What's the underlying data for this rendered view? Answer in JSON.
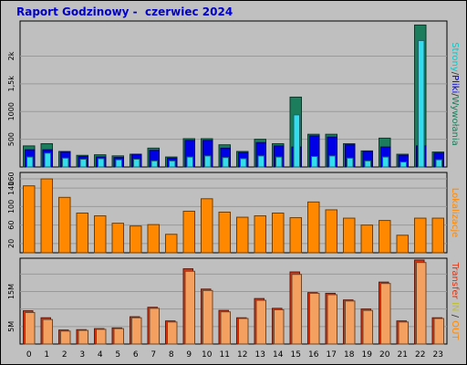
{
  "title": "Raport Godzinowy -  czerwiec 2024",
  "colors": {
    "background": "#c0c0c0",
    "plot_bg": "#bfbfbf",
    "title": "#0000cc",
    "wizyty": "#1c7d5c",
    "strony": "#0000e6",
    "pliki": "#33ddee",
    "lokalizacje": "#ff8800",
    "transfer_in": "#dd3311",
    "transfer_out": "#f4a060",
    "label_transfer": "#dd3311",
    "label_in": "#bfbf33",
    "label_out": "#ff8800"
  },
  "labels": {
    "right_top": [
      {
        "text": "Strony",
        "color": "#00cccc"
      },
      {
        "text": "/",
        "color": "#333333"
      },
      {
        "text": "Pliki",
        "color": "#0000cc"
      },
      {
        "text": "/",
        "color": "#333333"
      },
      {
        "text": "Wywołania",
        "color": "#1c7d5c"
      }
    ],
    "right_mid": "Lokalizacje",
    "right_bottom": [
      {
        "text": "Transfer",
        "color": "#dd3311"
      },
      {
        "text": " IN ",
        "color": "#bfbf33"
      },
      {
        "text": "/ ",
        "color": "#333333"
      },
      {
        "text": "OUT",
        "color": "#ff8800"
      }
    ]
  },
  "chart_data": [
    {
      "type": "bar",
      "panel": "hits",
      "categories": [
        "0",
        "1",
        "2",
        "3",
        "4",
        "5",
        "6",
        "7",
        "8",
        "9",
        "10",
        "11",
        "12",
        "13",
        "14",
        "15",
        "16",
        "17",
        "18",
        "19",
        "20",
        "21",
        "22",
        "23"
      ],
      "ylim": [
        0,
        2600
      ],
      "yticks": [
        500,
        1000,
        1500,
        2000
      ],
      "ytick_labels": [
        "500",
        "1000",
        "1,5k",
        "2k"
      ],
      "grid": true,
      "series": [
        {
          "key": "wizyty",
          "values": [
            380,
            420,
            280,
            210,
            220,
            200,
            230,
            340,
            180,
            510,
            510,
            400,
            280,
            500,
            420,
            1260,
            590,
            590,
            420,
            290,
            520,
            230,
            2560,
            270
          ]
        },
        {
          "key": "strony",
          "values": [
            310,
            310,
            270,
            190,
            180,
            170,
            230,
            300,
            160,
            480,
            480,
            340,
            260,
            440,
            380,
            360,
            560,
            540,
            400,
            280,
            360,
            210,
            380,
            250
          ]
        },
        {
          "key": "pliki",
          "values": [
            180,
            250,
            160,
            140,
            150,
            130,
            140,
            110,
            110,
            180,
            200,
            170,
            150,
            200,
            180,
            940,
            190,
            200,
            160,
            110,
            180,
            90,
            2280,
            130
          ]
        }
      ]
    },
    {
      "type": "bar",
      "panel": "locations",
      "categories": [
        "0",
        "1",
        "2",
        "3",
        "4",
        "5",
        "6",
        "7",
        "8",
        "9",
        "10",
        "11",
        "12",
        "13",
        "14",
        "15",
        "16",
        "17",
        "18",
        "19",
        "20",
        "21",
        "22",
        "23"
      ],
      "ylim": [
        0,
        170
      ],
      "yticks": [
        20,
        60,
        100,
        140,
        160
      ],
      "ytick_labels": [
        "20",
        "60",
        "100",
        "140",
        "160"
      ],
      "grid": true,
      "series": [
        {
          "key": "lokalizacje",
          "values": [
            145,
            160,
            120,
            86,
            80,
            64,
            58,
            61,
            40,
            90,
            117,
            88,
            77,
            80,
            86,
            76,
            110,
            93,
            75,
            60,
            70,
            38,
            75,
            75
          ]
        }
      ]
    },
    {
      "type": "bar",
      "panel": "transfer",
      "categories": [
        "0",
        "1",
        "2",
        "3",
        "4",
        "5",
        "6",
        "7",
        "8",
        "9",
        "10",
        "11",
        "12",
        "13",
        "14",
        "15",
        "16",
        "17",
        "18",
        "19",
        "20",
        "21",
        "22",
        "23"
      ],
      "ylim": [
        0,
        24
      ],
      "yticks": [
        5,
        10,
        15,
        20
      ],
      "ytick_labels": [
        "5M",
        "",
        "15M",
        ""
      ],
      "grid": true,
      "series": [
        {
          "key": "transfer_in",
          "values": [
            9.5,
            7.5,
            4.0,
            4.1,
            4.4,
            4.6,
            7.8,
            10.5,
            6.6,
            21.5,
            15.7,
            9.6,
            7.5,
            13.0,
            10.2,
            20.6,
            14.7,
            14.5,
            12.6,
            10.0,
            17.7,
            6.6,
            24.0,
            7.5
          ]
        },
        {
          "key": "transfer_out",
          "values": [
            9.0,
            7.0,
            3.7,
            3.9,
            4.2,
            4.4,
            7.5,
            10.2,
            6.3,
            20.8,
            15.3,
            9.2,
            7.3,
            12.5,
            9.8,
            19.9,
            14.5,
            14.1,
            12.3,
            9.6,
            17.3,
            6.3,
            23.3,
            7.3
          ]
        }
      ]
    }
  ]
}
